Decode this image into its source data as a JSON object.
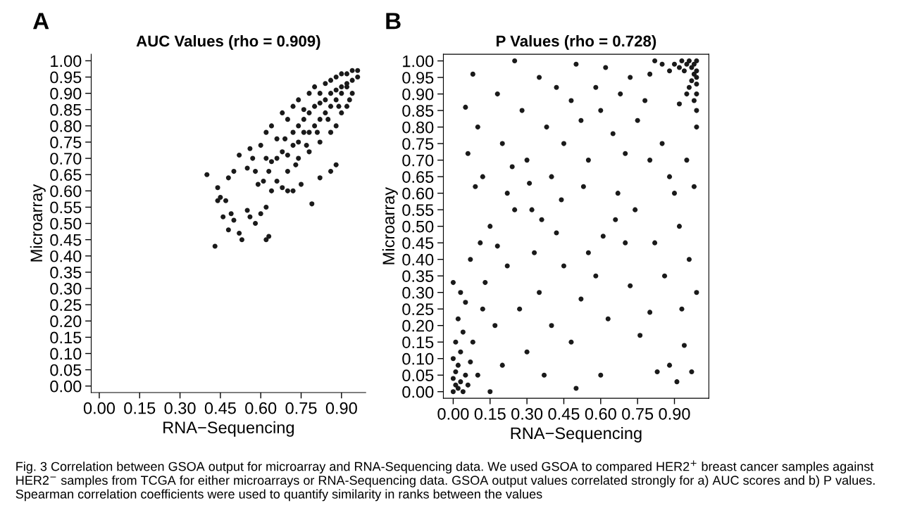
{
  "chart_data": [
    {
      "type": "scatter",
      "title": "AUC Values (rho = 0.909)",
      "xlabel": "RNA−Sequencing",
      "ylabel": "Microarray",
      "annotations": [
        "A"
      ],
      "xlim": [
        -0.03,
        0.99
      ],
      "ylim": [
        -0.02,
        1.02
      ],
      "xticks": [
        {
          "value": 0,
          "label": "0.00"
        },
        {
          "value": 0.15,
          "label": "0.15"
        },
        {
          "value": 0.3,
          "label": "0.30"
        },
        {
          "value": 0.45,
          "label": "0.45"
        },
        {
          "value": 0.6,
          "label": "0.60"
        },
        {
          "value": 0.75,
          "label": "0.75"
        },
        {
          "value": 0.9,
          "label": "0.90"
        }
      ],
      "yticks": [
        {
          "value": 0,
          "label": "0.00"
        },
        {
          "value": 0.05,
          "label": "0.05"
        },
        {
          "value": 0.1,
          "label": "0.10"
        },
        {
          "value": 0.15,
          "label": "0.15"
        },
        {
          "value": 0.2,
          "label": "0.20"
        },
        {
          "value": 0.25,
          "label": "0.25"
        },
        {
          "value": 0.3,
          "label": "0.30"
        },
        {
          "value": 0.35,
          "label": "0.35"
        },
        {
          "value": 0.4,
          "label": "0.40"
        },
        {
          "value": 0.45,
          "label": "0.45"
        },
        {
          "value": 0.5,
          "label": "0.50"
        },
        {
          "value": 0.55,
          "label": "0.55"
        },
        {
          "value": 0.6,
          "label": "0.60"
        },
        {
          "value": 0.65,
          "label": "0.65"
        },
        {
          "value": 0.7,
          "label": "0.70"
        },
        {
          "value": 0.75,
          "label": "0.75"
        },
        {
          "value": 0.8,
          "label": "0.80"
        },
        {
          "value": 0.85,
          "label": "0.85"
        },
        {
          "value": 0.9,
          "label": "0.90"
        },
        {
          "value": 0.95,
          "label": "0.95"
        },
        {
          "value": 1,
          "label": "1.00"
        }
      ],
      "grid": false,
      "marker": "circle",
      "series": [
        {
          "color": "#1a1a1a",
          "x": [
            0.4,
            0.43,
            0.63,
            0.62,
            0.44,
            0.45,
            0.47,
            0.49,
            0.5,
            0.52,
            0.53,
            0.55,
            0.56,
            0.58,
            0.6,
            0.62,
            0.64,
            0.48,
            0.5,
            0.52,
            0.55,
            0.57,
            0.59,
            0.61,
            0.63,
            0.66,
            0.68,
            0.7,
            0.72,
            0.75,
            0.79,
            0.82,
            0.86,
            0.88,
            0.6,
            0.62,
            0.64,
            0.66,
            0.68,
            0.7,
            0.72,
            0.74,
            0.76,
            0.78,
            0.8,
            0.82,
            0.84,
            0.86,
            0.88,
            0.9,
            0.92,
            0.94,
            0.96,
            0.66,
            0.68,
            0.7,
            0.72,
            0.74,
            0.76,
            0.78,
            0.8,
            0.82,
            0.84,
            0.86,
            0.88,
            0.9,
            0.92,
            0.94,
            0.7,
            0.74,
            0.78,
            0.82,
            0.86,
            0.88,
            0.9,
            0.92,
            0.94,
            0.96,
            0.72,
            0.76,
            0.8,
            0.84,
            0.88,
            0.92,
            0.74,
            0.78,
            0.82,
            0.86,
            0.9,
            0.64,
            0.69,
            0.73,
            0.77,
            0.81,
            0.85,
            0.89,
            0.93,
            0.44,
            0.46,
            0.48,
            0.58,
            0.62,
            0.56
          ],
          "values": [
            0.65,
            0.43,
            0.46,
            0.45,
            0.61,
            0.58,
            0.57,
            0.53,
            0.51,
            0.47,
            0.45,
            0.54,
            0.52,
            0.5,
            0.53,
            0.55,
            0.6,
            0.64,
            0.66,
            0.71,
            0.67,
            0.7,
            0.62,
            0.63,
            0.66,
            0.63,
            0.61,
            0.6,
            0.6,
            0.62,
            0.56,
            0.64,
            0.66,
            0.68,
            0.74,
            0.78,
            0.8,
            0.76,
            0.84,
            0.82,
            0.86,
            0.88,
            0.85,
            0.9,
            0.92,
            0.9,
            0.93,
            0.94,
            0.95,
            0.96,
            0.96,
            0.97,
            0.97,
            0.7,
            0.72,
            0.71,
            0.74,
            0.75,
            0.78,
            0.78,
            0.8,
            0.82,
            0.84,
            0.86,
            0.88,
            0.9,
            0.92,
            0.94,
            0.66,
            0.7,
            0.72,
            0.75,
            0.78,
            0.8,
            0.84,
            0.86,
            0.9,
            0.95,
            0.78,
            0.82,
            0.86,
            0.88,
            0.91,
            0.93,
            0.8,
            0.84,
            0.87,
            0.9,
            0.92,
            0.69,
            0.76,
            0.68,
            0.74,
            0.78,
            0.82,
            0.86,
            0.88,
            0.57,
            0.52,
            0.48,
            0.66,
            0.7,
            0.73
          ]
        }
      ]
    },
    {
      "type": "scatter",
      "title": "P Values (rho = 0.728)",
      "xlabel": "RNA−Sequencing",
      "ylabel": "Microarray",
      "annotations": [
        "B",
        "Fig. 3 Correlation between GSOA output for microarray and RNA-Sequencing data. We used GSOA to compared HER2$^{+}$ breast cancer samples against HER2$^{−}$ samples from TCGA for either microarrays or RNA-Sequencing data. GSOA output values correlated strongly for a) AUC scores and b) P values. Spearman correlation coefficients were used to quantify similarity in ranks between the values"
      ],
      "xlim": [
        -0.04,
        1.04
      ],
      "ylim": [
        -0.02,
        1.02
      ],
      "xticks": [
        {
          "value": 0,
          "label": "0.00"
        },
        {
          "value": 0.15,
          "label": "0.15"
        },
        {
          "value": 0.3,
          "label": "0.30"
        },
        {
          "value": 0.45,
          "label": "0.45"
        },
        {
          "value": 0.6,
          "label": "0.60"
        },
        {
          "value": 0.75,
          "label": "0.75"
        },
        {
          "value": 0.9,
          "label": "0.90"
        }
      ],
      "yticks": [
        {
          "value": 0,
          "label": "0.00"
        },
        {
          "value": 0.05,
          "label": "0.05"
        },
        {
          "value": 0.1,
          "label": "0.10"
        },
        {
          "value": 0.15,
          "label": "0.15"
        },
        {
          "value": 0.2,
          "label": "0.20"
        },
        {
          "value": 0.25,
          "label": "0.25"
        },
        {
          "value": 0.3,
          "label": "0.30"
        },
        {
          "value": 0.35,
          "label": "0.35"
        },
        {
          "value": 0.4,
          "label": "0.40"
        },
        {
          "value": 0.45,
          "label": "0.45"
        },
        {
          "value": 0.5,
          "label": "0.50"
        },
        {
          "value": 0.55,
          "label": "0.55"
        },
        {
          "value": 0.6,
          "label": "0.60"
        },
        {
          "value": 0.65,
          "label": "0.65"
        },
        {
          "value": 0.7,
          "label": "0.70"
        },
        {
          "value": 0.75,
          "label": "0.75"
        },
        {
          "value": 0.8,
          "label": "0.80"
        },
        {
          "value": 0.85,
          "label": "0.85"
        },
        {
          "value": 0.9,
          "label": "0.90"
        },
        {
          "value": 0.95,
          "label": "0.95"
        },
        {
          "value": 1,
          "label": "1.00"
        }
      ],
      "grid": false,
      "marker": "circle",
      "series": [
        {
          "color": "#1a1a1a",
          "x": [
            0.0,
            0.01,
            0.02,
            0.0,
            0.03,
            0.01,
            0.04,
            0.02,
            0.05,
            0.0,
            0.03,
            0.06,
            0.01,
            0.04,
            0.07,
            0.02,
            0.05,
            0.0,
            0.08,
            0.1,
            0.03,
            0.99,
            0.98,
            0.97,
            0.99,
            0.96,
            0.95,
            0.98,
            0.99,
            0.94,
            0.97,
            0.99,
            0.93,
            0.96,
            0.92,
            0.99,
            0.9,
            0.95,
            0.98,
            0.88,
            0.85,
            0.82,
            0.99,
            0.92,
            0.8,
            0.99,
            0.05,
            0.08,
            0.1,
            0.12,
            0.15,
            0.18,
            0.2,
            0.22,
            0.25,
            0.28,
            0.3,
            0.32,
            0.35,
            0.38,
            0.4,
            0.42,
            0.45,
            0.48,
            0.5,
            0.52,
            0.55,
            0.58,
            0.6,
            0.62,
            0.65,
            0.68,
            0.7,
            0.72,
            0.75,
            0.78,
            0.8,
            0.85,
            0.88,
            0.9,
            0.95,
            0.98,
            0.92,
            0.96,
            0.99,
            0.94,
            0.97,
            0.91,
            0.88,
            0.83,
            0.8,
            0.76,
            0.72,
            0.7,
            0.66,
            0.63,
            0.6,
            0.58,
            0.55,
            0.52,
            0.5,
            0.48,
            0.45,
            0.42,
            0.4,
            0.37,
            0.35,
            0.33,
            0.3,
            0.27,
            0.25,
            0.22,
            0.2,
            0.17,
            0.15,
            0.13,
            0.11,
            0.09,
            0.07,
            0.06,
            0.12,
            0.18,
            0.24,
            0.31,
            0.36,
            0.44,
            0.53,
            0.61,
            0.67,
            0.74,
            0.82,
            0.86,
            0.93
          ],
          "values": [
            0.0,
            0.02,
            0.01,
            0.04,
            0.03,
            0.06,
            0.0,
            0.08,
            0.05,
            0.1,
            0.12,
            0.02,
            0.15,
            0.18,
            0.09,
            0.22,
            0.27,
            0.33,
            0.15,
            0.05,
            0.3,
            1.0,
            0.99,
            0.98,
            0.97,
            1.0,
            0.99,
            0.96,
            0.95,
            0.97,
            0.94,
            0.93,
            1.0,
            0.92,
            0.98,
            0.9,
            0.99,
            0.9,
            0.88,
            0.97,
            0.99,
            1.0,
            0.85,
            0.87,
            0.96,
            0.8,
            0.86,
            0.96,
            0.8,
            0.65,
            0.5,
            0.9,
            0.75,
            0.6,
            1.0,
            0.85,
            0.7,
            0.55,
            0.95,
            0.8,
            0.65,
            0.92,
            0.75,
            0.88,
            0.99,
            0.82,
            0.7,
            0.92,
            0.85,
            0.98,
            0.78,
            0.9,
            0.72,
            0.95,
            0.82,
            0.88,
            0.7,
            0.75,
            0.65,
            0.6,
            0.7,
            0.62,
            0.5,
            0.4,
            0.3,
            0.14,
            0.06,
            0.03,
            0.08,
            0.06,
            0.24,
            0.17,
            0.32,
            0.45,
            0.52,
            0.22,
            0.05,
            0.35,
            0.42,
            0.28,
            0.01,
            0.15,
            0.38,
            0.48,
            0.2,
            0.05,
            0.3,
            0.42,
            0.12,
            0.25,
            0.55,
            0.38,
            0.08,
            0.2,
            0.0,
            0.33,
            0.45,
            0.62,
            0.4,
            0.72,
            0.25,
            0.44,
            0.68,
            0.63,
            0.52,
            0.58,
            0.62,
            0.47,
            0.6,
            0.55,
            0.45,
            0.35,
            0.25
          ]
        }
      ]
    }
  ]
}
